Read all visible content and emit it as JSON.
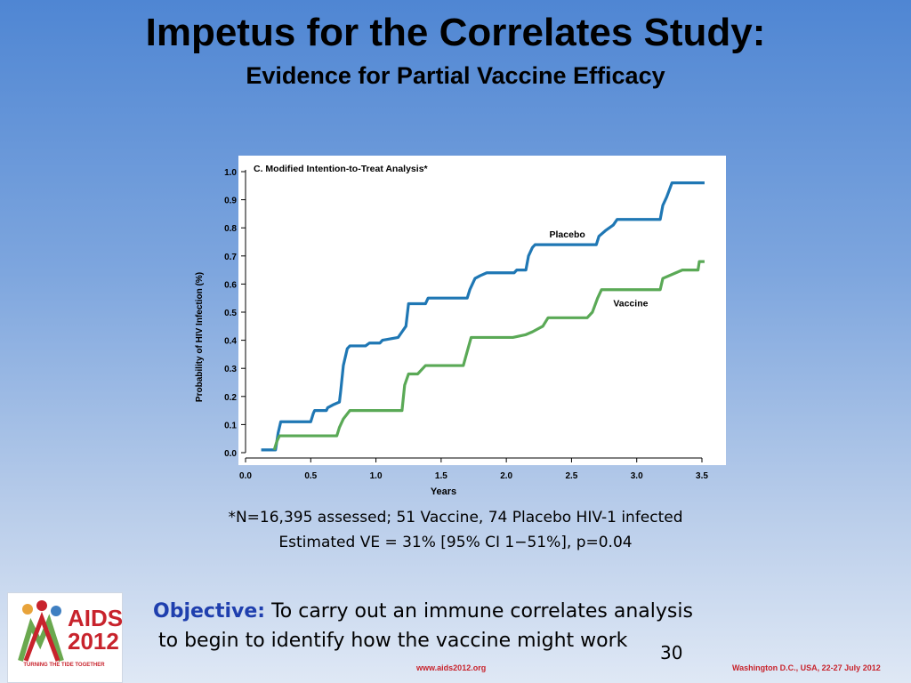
{
  "slide": {
    "title": "Impetus for the Correlates Study:",
    "subtitle": "Evidence for Partial Vaccine Efficacy",
    "footnote_line1": "*N=16,395 assessed; 51 Vaccine, 74 Placebo HIV-1 infected",
    "footnote_line2": "Estimated VE = 31% [95% CI 1−51%], p=0.04",
    "objective_label": "Objective:",
    "objective_text1": " To carry out an immune correlates analysis",
    "objective_text2": "to begin to identify how the vaccine might work",
    "slide_number": "30",
    "footer_url": "www.aids2012.org",
    "footer_location": "Washington D.C., USA, 22-27 July 2012",
    "logo_line1": "AIDS",
    "logo_line2": "2012",
    "logo_tagline": "TURNING THE TIDE TOGETHER"
  },
  "chart_data": {
    "type": "line",
    "title": "C.  Modified Intention-to-Treat Analysis*",
    "xlabel": "Years",
    "ylabel": "Probability of HIV Infection (%)",
    "xlim": [
      0,
      3.5
    ],
    "ylim": [
      0,
      1.0
    ],
    "x_ticks": [
      "0.0",
      "0.5",
      "1.0",
      "1.5",
      "2.0",
      "2.5",
      "3.0",
      "3.5"
    ],
    "y_ticks": [
      "0.0",
      "0.1",
      "0.2",
      "0.3",
      "0.4",
      "0.5",
      "0.6",
      "0.7",
      "0.8",
      "0.9",
      "1.0"
    ],
    "colors": {
      "Placebo": "#1f77b4",
      "Vaccine": "#5aa956"
    },
    "series": [
      {
        "name": "Placebo",
        "points": [
          [
            0.12,
            0.01
          ],
          [
            0.23,
            0.01
          ],
          [
            0.25,
            0.07
          ],
          [
            0.27,
            0.11
          ],
          [
            0.5,
            0.11
          ],
          [
            0.52,
            0.14
          ],
          [
            0.53,
            0.15
          ],
          [
            0.62,
            0.15
          ],
          [
            0.63,
            0.16
          ],
          [
            0.67,
            0.17
          ],
          [
            0.72,
            0.18
          ],
          [
            0.73,
            0.22
          ],
          [
            0.75,
            0.31
          ],
          [
            0.78,
            0.37
          ],
          [
            0.8,
            0.38
          ],
          [
            0.92,
            0.38
          ],
          [
            0.95,
            0.39
          ],
          [
            1.03,
            0.39
          ],
          [
            1.05,
            0.4
          ],
          [
            1.17,
            0.41
          ],
          [
            1.2,
            0.43
          ],
          [
            1.23,
            0.45
          ],
          [
            1.25,
            0.53
          ],
          [
            1.38,
            0.53
          ],
          [
            1.4,
            0.55
          ],
          [
            1.7,
            0.55
          ],
          [
            1.72,
            0.58
          ],
          [
            1.76,
            0.62
          ],
          [
            1.8,
            0.63
          ],
          [
            1.85,
            0.64
          ],
          [
            2.06,
            0.64
          ],
          [
            2.08,
            0.65
          ],
          [
            2.15,
            0.65
          ],
          [
            2.17,
            0.7
          ],
          [
            2.2,
            0.73
          ],
          [
            2.22,
            0.74
          ],
          [
            2.69,
            0.74
          ],
          [
            2.71,
            0.77
          ],
          [
            2.76,
            0.79
          ],
          [
            2.82,
            0.81
          ],
          [
            2.85,
            0.83
          ],
          [
            3.18,
            0.83
          ],
          [
            3.2,
            0.88
          ],
          [
            3.23,
            0.91
          ],
          [
            3.27,
            0.96
          ],
          [
            3.52,
            0.96
          ]
        ]
      },
      {
        "name": "Vaccine",
        "points": [
          [
            0.22,
            0.01
          ],
          [
            0.24,
            0.04
          ],
          [
            0.26,
            0.06
          ],
          [
            0.7,
            0.06
          ],
          [
            0.72,
            0.09
          ],
          [
            0.75,
            0.12
          ],
          [
            0.8,
            0.15
          ],
          [
            1.2,
            0.15
          ],
          [
            1.22,
            0.24
          ],
          [
            1.25,
            0.28
          ],
          [
            1.32,
            0.28
          ],
          [
            1.36,
            0.3
          ],
          [
            1.38,
            0.31
          ],
          [
            1.67,
            0.31
          ],
          [
            1.7,
            0.36
          ],
          [
            1.73,
            0.41
          ],
          [
            2.05,
            0.41
          ],
          [
            2.15,
            0.42
          ],
          [
            2.2,
            0.43
          ],
          [
            2.28,
            0.45
          ],
          [
            2.32,
            0.48
          ],
          [
            2.62,
            0.48
          ],
          [
            2.66,
            0.5
          ],
          [
            2.7,
            0.55
          ],
          [
            2.73,
            0.58
          ],
          [
            3.18,
            0.58
          ],
          [
            3.2,
            0.62
          ],
          [
            3.3,
            0.64
          ],
          [
            3.35,
            0.65
          ],
          [
            3.47,
            0.65
          ],
          [
            3.48,
            0.68
          ],
          [
            3.52,
            0.68
          ]
        ]
      }
    ]
  }
}
